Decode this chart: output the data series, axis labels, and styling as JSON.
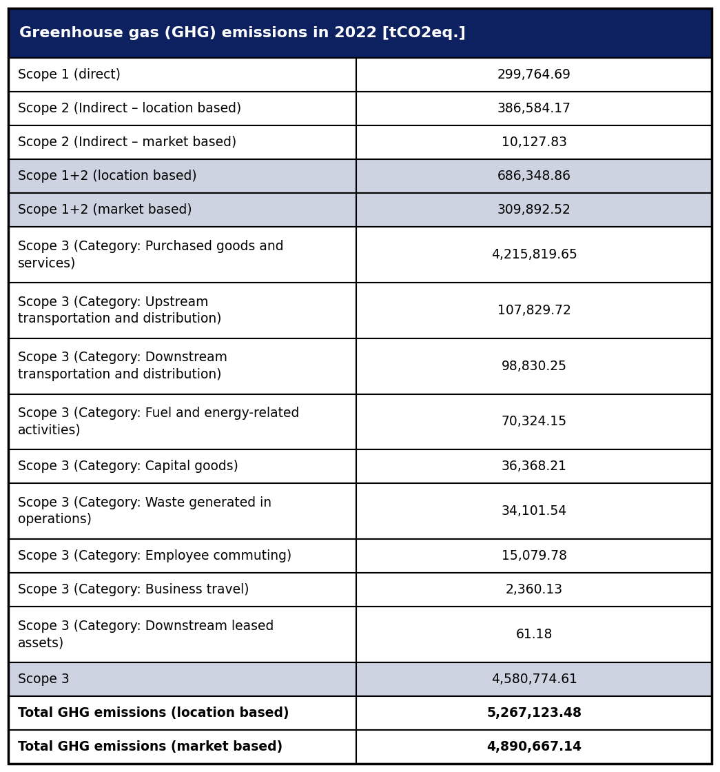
{
  "title": "Greenhouse gas (GHG) emissions in 2022 [tCO2eq.]",
  "title_bg_color": "#0d2060",
  "title_text_color": "#ffffff",
  "col_split": 0.495,
  "rows": [
    {
      "label": "Scope 1 (direct)",
      "value": "299,764.69",
      "bg": "#ffffff",
      "bold": false
    },
    {
      "label": "Scope 2 (Indirect – location based)",
      "value": "386,584.17",
      "bg": "#ffffff",
      "bold": false
    },
    {
      "label": "Scope 2 (Indirect – market based)",
      "value": "10,127.83",
      "bg": "#ffffff",
      "bold": false
    },
    {
      "label": "Scope 1+2 (location based)",
      "value": "686,348.86",
      "bg": "#cdd3e0",
      "bold": false
    },
    {
      "label": "Scope 1+2 (market based)",
      "value": "309,892.52",
      "bg": "#cdd3e0",
      "bold": false
    },
    {
      "label": "Scope 3 (Category: Purchased goods and\nservices)",
      "value": "4,215,819.65",
      "bg": "#ffffff",
      "bold": false
    },
    {
      "label": "Scope 3 (Category: Upstream\ntransportation and distribution)",
      "value": "107,829.72",
      "bg": "#ffffff",
      "bold": false
    },
    {
      "label": "Scope 3 (Category: Downstream\ntransportation and distribution)",
      "value": "98,830.25",
      "bg": "#ffffff",
      "bold": false
    },
    {
      "label": "Scope 3 (Category: Fuel and energy-related\nactivities)",
      "value": "70,324.15",
      "bg": "#ffffff",
      "bold": false
    },
    {
      "label": "Scope 3 (Category: Capital goods)",
      "value": "36,368.21",
      "bg": "#ffffff",
      "bold": false
    },
    {
      "label": "Scope 3 (Category: Waste generated in\noperations)",
      "value": "34,101.54",
      "bg": "#ffffff",
      "bold": false
    },
    {
      "label": "Scope 3 (Category: Employee commuting)",
      "value": "15,079.78",
      "bg": "#ffffff",
      "bold": false
    },
    {
      "label": "Scope 3 (Category: Business travel)",
      "value": "2,360.13",
      "bg": "#ffffff",
      "bold": false
    },
    {
      "label": "Scope 3 (Category: Downstream leased\nassets)",
      "value": "61.18",
      "bg": "#ffffff",
      "bold": false
    },
    {
      "label": "Scope 3",
      "value": "4,580,774.61",
      "bg": "#cdd3e0",
      "bold": false
    },
    {
      "label": "Total GHG emissions (location based)",
      "value": "5,267,123.48",
      "bg": "#ffffff",
      "bold": true
    },
    {
      "label": "Total GHG emissions (market based)",
      "value": "4,890,667.14",
      "bg": "#ffffff",
      "bold": true
    }
  ],
  "border_color": "#000000",
  "font_size": 13.5,
  "title_font_size": 16.0,
  "value_font_size": 13.5
}
